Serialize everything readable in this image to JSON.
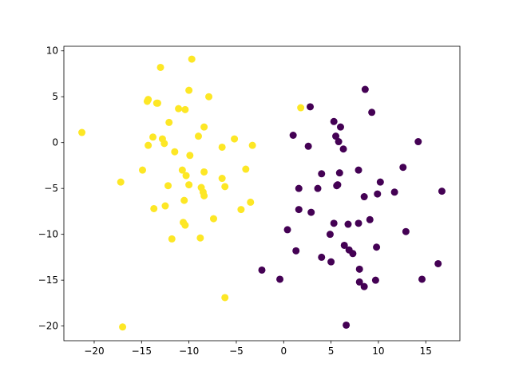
{
  "chart_data": {
    "type": "scatter",
    "xlim": [
      -23.2,
      18.6
    ],
    "ylim": [
      -21.6,
      10.5
    ],
    "xticks": [
      {
        "value": -20,
        "label": "−20"
      },
      {
        "value": -15,
        "label": "−15"
      },
      {
        "value": -10,
        "label": "−10"
      },
      {
        "value": -5,
        "label": "−5"
      },
      0,
      5,
      10,
      15
    ],
    "yticks": [
      {
        "value": -20,
        "label": "−20"
      },
      {
        "value": -15,
        "label": "−15"
      },
      {
        "value": -10,
        "label": "−10"
      },
      {
        "value": -5,
        "label": "−5"
      },
      0,
      5,
      10
    ],
    "series": [
      {
        "color": "#fde725",
        "x": [
          -21.3,
          -9.7,
          -13.0,
          -10.0,
          -7.9,
          -14.3,
          -14.4,
          -13.4,
          -13.3,
          -11.1,
          -10.4,
          -12.1,
          -8.4,
          1.8,
          -13.8,
          -12.8,
          -9.0,
          -5.2,
          -14.3,
          -12.6,
          -3.3,
          -6.5,
          -11.5,
          -9.9,
          -14.9,
          -10.7,
          -8.4,
          -10.3,
          -4.0,
          -6.5,
          -10.0,
          -8.7,
          -6.2,
          -8.5,
          -12.2,
          -17.2,
          -8.4,
          -13.7,
          -3.5,
          -10.5,
          -4.5,
          -12.5,
          -7.4,
          -10.6,
          -10.4,
          -11.8,
          -8.8,
          -6.2,
          -17.0
        ],
        "values": [
          1.1,
          9.1,
          8.2,
          5.7,
          5.0,
          4.7,
          4.5,
          4.3,
          4.3,
          3.7,
          3.6,
          2.2,
          1.7,
          3.8,
          0.6,
          0.4,
          0.7,
          0.4,
          -0.3,
          -0.1,
          -0.3,
          -0.5,
          -1.0,
          -1.4,
          -3.0,
          -3.0,
          -3.2,
          -3.6,
          -2.9,
          -3.9,
          -4.6,
          -4.9,
          -4.8,
          -5.4,
          -4.7,
          -4.3,
          -5.8,
          -7.2,
          -6.5,
          -6.3,
          -7.3,
          -6.9,
          -8.3,
          -8.7,
          -9.0,
          -10.5,
          -10.4,
          -16.9,
          -20.1
        ]
      },
      {
        "color": "#440154",
        "x": [
          8.6,
          2.8,
          9.3,
          5.3,
          6.0,
          1.0,
          5.5,
          5.8,
          2.6,
          14.2,
          6.3,
          7.9,
          4.0,
          5.9,
          12.6,
          1.6,
          3.6,
          5.7,
          5.6,
          10.2,
          9.9,
          8.5,
          11.7,
          16.7,
          1.6,
          2.9,
          9.1,
          0.4,
          5.3,
          6.8,
          7.9,
          4.9,
          12.9,
          1.3,
          6.4,
          6.9,
          7.3,
          9.8,
          4.0,
          5.0,
          -2.3,
          8.0,
          16.3,
          -0.4,
          8.0,
          9.7,
          8.5,
          14.6,
          6.6
        ],
        "values": [
          5.8,
          3.9,
          3.3,
          2.3,
          1.7,
          0.8,
          0.7,
          0.1,
          -0.4,
          0.1,
          -0.7,
          -3.0,
          -3.4,
          -3.3,
          -2.7,
          -5.0,
          -5.0,
          -4.6,
          -4.7,
          -4.3,
          -5.6,
          -5.9,
          -5.4,
          -5.3,
          -7.3,
          -7.6,
          -8.4,
          -9.5,
          -8.8,
          -8.9,
          -8.8,
          -10.0,
          -9.7,
          -11.8,
          -11.2,
          -11.7,
          -12.1,
          -11.4,
          -12.5,
          -13.0,
          -13.9,
          -13.8,
          -13.2,
          -14.9,
          -15.2,
          -15.0,
          -15.7,
          -14.9,
          -19.9
        ]
      }
    ]
  }
}
